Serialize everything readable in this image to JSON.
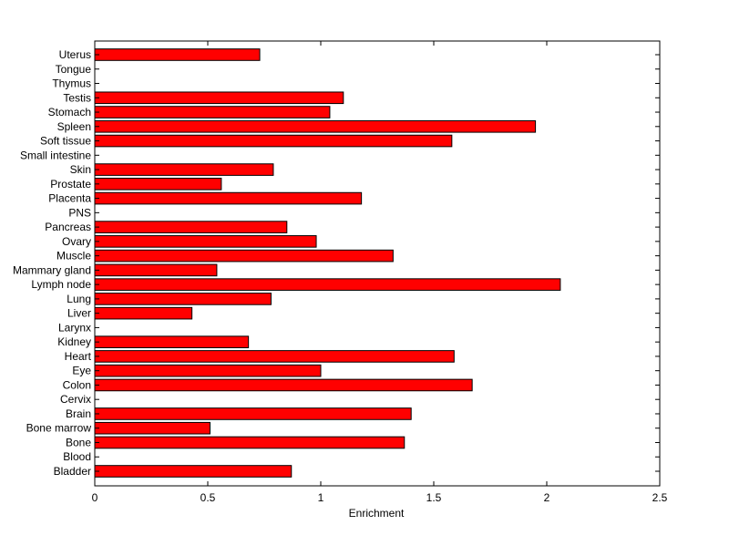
{
  "chart_data": {
    "type": "bar",
    "orientation": "horizontal",
    "title": "",
    "xlabel": "Enrichment",
    "ylabel": "",
    "xlim": [
      0,
      2.5
    ],
    "xticks": [
      0,
      0.5,
      1,
      1.5,
      2,
      2.5
    ],
    "xtick_labels": [
      "0",
      "0.5",
      "1",
      "1.5",
      "2",
      "2.5"
    ],
    "grid": false,
    "legend": "none",
    "bar_color": "#ff0000",
    "edge_color": "#000000",
    "categories": [
      "Bladder",
      "Blood",
      "Bone",
      "Bone marrow",
      "Brain",
      "Cervix",
      "Colon",
      "Eye",
      "Heart",
      "Kidney",
      "Larynx",
      "Liver",
      "Lung",
      "Lymph node",
      "Mammary gland",
      "Muscle",
      "Ovary",
      "Pancreas",
      "PNS",
      "Placenta",
      "Prostate",
      "Skin",
      "Small intestine",
      "Soft tissue",
      "Spleen",
      "Stomach",
      "Testis",
      "Thymus",
      "Tongue",
      "Uterus"
    ],
    "values": [
      0.87,
      0,
      1.37,
      0.51,
      1.4,
      0,
      1.67,
      1.0,
      1.59,
      0.68,
      0,
      0.43,
      0.78,
      2.06,
      0.54,
      1.32,
      0.98,
      0.85,
      0,
      1.18,
      0.56,
      0.79,
      0,
      1.58,
      1.95,
      1.04,
      1.1,
      0,
      0,
      0.73
    ]
  }
}
